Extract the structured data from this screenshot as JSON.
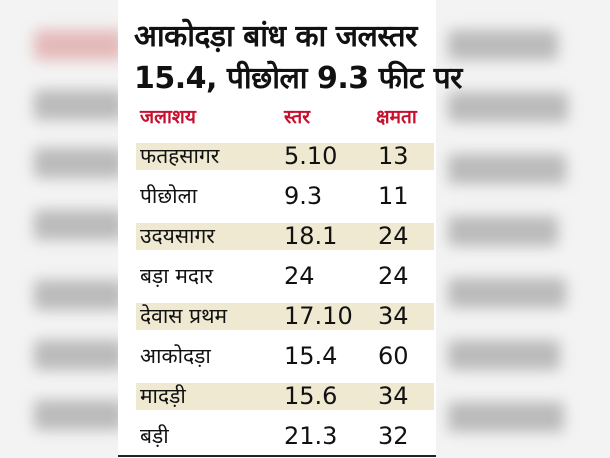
{
  "headline": {
    "line1": "आकोदड़ा बांध का जलस्तर",
    "line2": "15.4, पीछोला 9.3 फीट पर"
  },
  "columns": {
    "name": "जलाशय",
    "level": "स्तर",
    "capacity": "क्षमता"
  },
  "rows": [
    {
      "name": "फतहसागर",
      "level": "5.10",
      "capacity": "13"
    },
    {
      "name": "पीछोला",
      "level": "9.3",
      "capacity": "11"
    },
    {
      "name": "उदयसागर",
      "level": "18.1",
      "capacity": "24"
    },
    {
      "name": "बड़ा मदार",
      "level": "24",
      "capacity": "24"
    },
    {
      "name": "देवास प्रथम",
      "level": "17.10",
      "capacity": "34"
    },
    {
      "name": "आकोदड़ा",
      "level": "15.4",
      "capacity": "60"
    },
    {
      "name": "मादड़ी",
      "level": "15.6",
      "capacity": "34"
    },
    {
      "name": "बड़ी",
      "level": "21.3",
      "capacity": "32"
    }
  ],
  "colors": {
    "header_accent": "#c8102e",
    "row_shade": "#efe9d2",
    "text": "#111111"
  }
}
